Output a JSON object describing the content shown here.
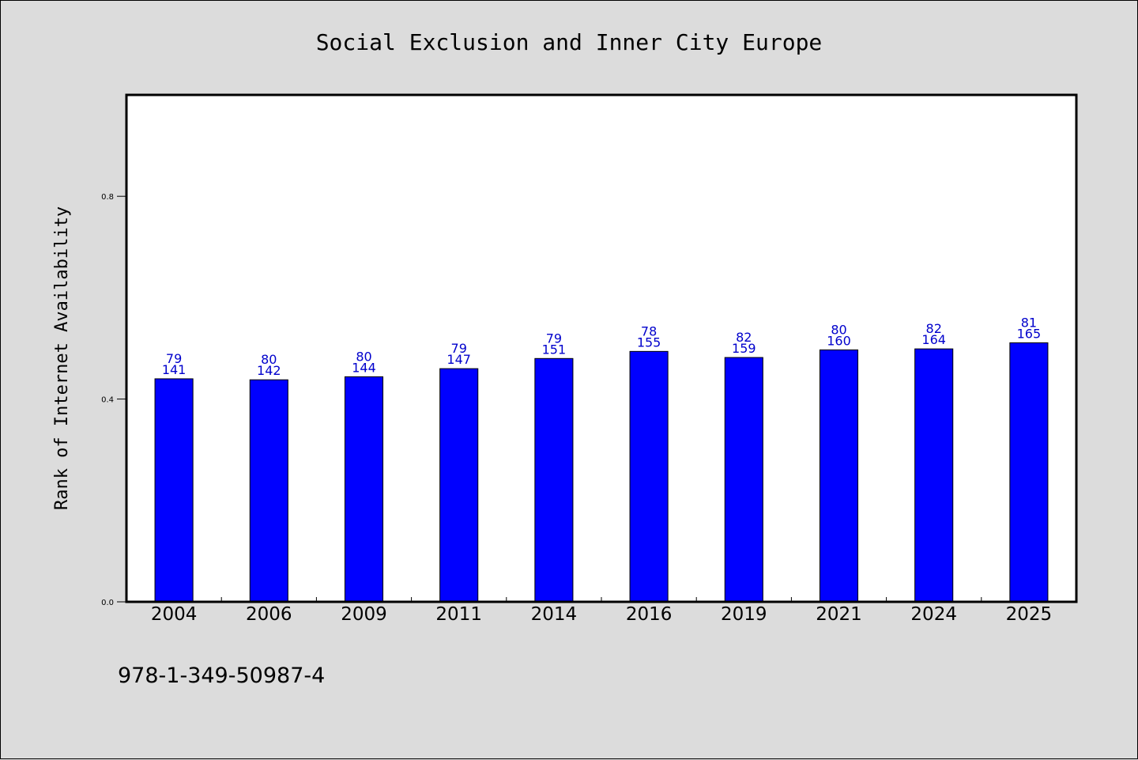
{
  "chart_data": {
    "type": "bar",
    "title": "Social Exclusion and Inner City Europe",
    "ylabel": "Rank of Internet Availability",
    "xlabel": "",
    "categories": [
      "2004",
      "2006",
      "2009",
      "2011",
      "2014",
      "2016",
      "2019",
      "2021",
      "2024",
      "2025"
    ],
    "values": [
      0.44,
      0.438,
      0.444,
      0.46,
      0.48,
      0.494,
      0.482,
      0.497,
      0.499,
      0.511
    ],
    "label_top": [
      "79",
      "80",
      "80",
      "79",
      "79",
      "78",
      "82",
      "80",
      "82",
      "81"
    ],
    "label_bottom": [
      "141",
      "142",
      "144",
      "147",
      "151",
      "155",
      "159",
      "160",
      "164",
      "165"
    ],
    "ylim": [
      0,
      1.0
    ],
    "yticks": [
      0.0,
      0.4,
      0.8
    ],
    "ytick_labels": [
      "0.0",
      "0.4",
      "0.8"
    ],
    "bar_color": "#0000ff",
    "label_color": "#0000cc",
    "background": "#dcdcdc",
    "grid": false,
    "legend": "none"
  },
  "footer": {
    "isbn": "978-1-349-50987-4"
  }
}
